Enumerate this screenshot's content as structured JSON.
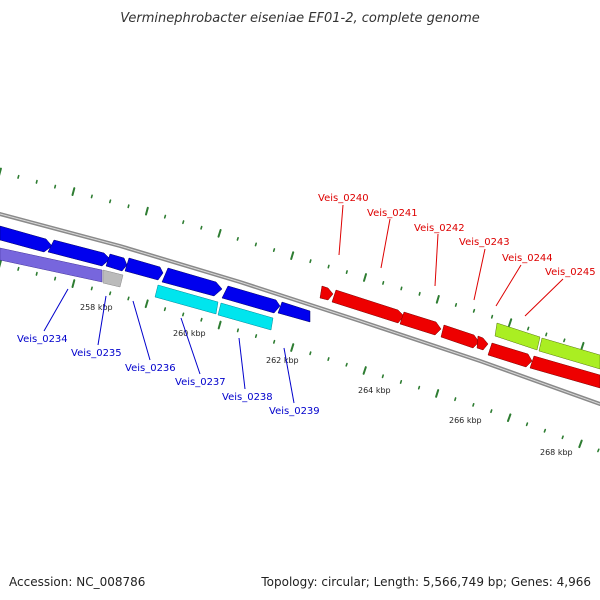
{
  "title": "Verminephrobacter eiseniae EF01-2, complete genome",
  "footer": {
    "accession": "Accession: NC_008786",
    "summary": "Topology: circular; Length: 5,566,749 bp; Genes: 4,966"
  },
  "colors": {
    "background": "#ffffff",
    "backbone": "#808080",
    "ticks": "#2e7d32",
    "label_blue": "#0000cc",
    "label_red": "#dd0000",
    "gene_blue": "#0000ee",
    "gene_cyan": "#00e5ee",
    "gene_red": "#ee0000",
    "gene_green": "#aaee22",
    "gene_purple": "#7766dd",
    "gene_gray": "#bbbbbb"
  },
  "scale_labels": [
    "258 kbp",
    "260 kbp",
    "262 kbp",
    "264 kbp",
    "266 kbp",
    "268 kbp"
  ],
  "gene_labels_left": [
    "Veis_0234",
    "Veis_0235",
    "Veis_0236",
    "Veis_0237",
    "Veis_0238",
    "Veis_0239"
  ],
  "gene_labels_right": [
    "Veis_0240",
    "Veis_0241",
    "Veis_0242",
    "Veis_0243",
    "Veis_0244",
    "Veis_0245"
  ]
}
